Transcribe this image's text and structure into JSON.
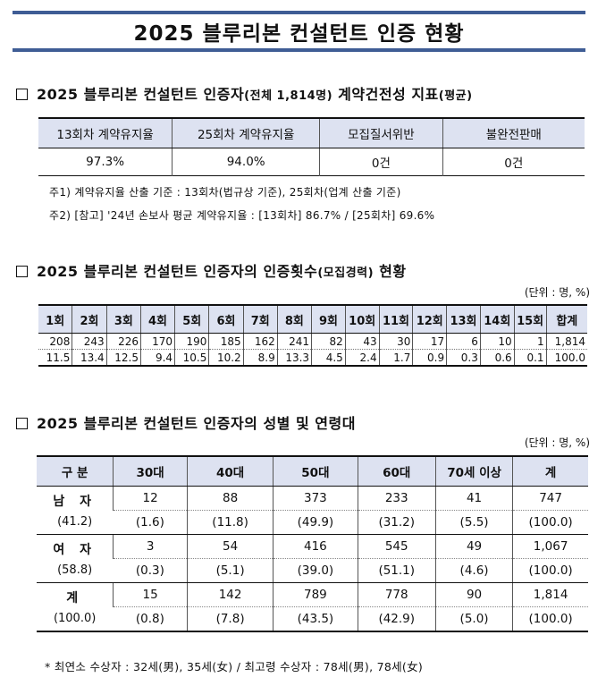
{
  "title": "2025 블루리본 컨설턴트 인증 현황",
  "section1": {
    "heading": "2025 블루리본 컨설턴트 인증자",
    "heading_small": "(전체 1,814명)",
    "heading_tail": " 계약건전성 지표",
    "heading_tail_small": "(평균)",
    "headers": [
      "13회차 계약유지율",
      "25회차 계약유지율",
      "모집질서위반",
      "불완전판매"
    ],
    "values": [
      "97.3%",
      "94.0%",
      "0건",
      "0건"
    ],
    "note1": "주1) 계약유지율 산출 기준 : 13회차(법규상 기준), 25회차(업계 산출 기준)",
    "note2": "주2) [참고] '24년 손보사 평균 계약유지율 : [13회차] 86.7% / [25회차] 69.6%"
  },
  "section2": {
    "heading": "2025 블루리본 컨설턴트 인증자의 인증횟수",
    "heading_small": "(모집경력)",
    "heading_tail": " 현황",
    "unit": "(단위 : 명, %)",
    "headers": [
      "1회",
      "2회",
      "3회",
      "4회",
      "5회",
      "6회",
      "7회",
      "8회",
      "9회",
      "10회",
      "11회",
      "12회",
      "13회",
      "14회",
      "15회",
      "합계"
    ],
    "counts": [
      "208",
      "243",
      "226",
      "170",
      "190",
      "185",
      "162",
      "241",
      "82",
      "43",
      "30",
      "17",
      "6",
      "10",
      "1",
      "1,814"
    ],
    "percents": [
      "11.5",
      "13.4",
      "12.5",
      "9.4",
      "10.5",
      "10.2",
      "8.9",
      "13.3",
      "4.5",
      "2.4",
      "1.7",
      "0.9",
      "0.3",
      "0.6",
      "0.1",
      "100.0"
    ]
  },
  "section3": {
    "heading": "2025 블루리본 컨설턴트 인증자의 성별 및 연령대",
    "unit": "(단위 : 명, %)",
    "headers": [
      "구 분",
      "30대",
      "40대",
      "50대",
      "60대",
      "70세 이상",
      "계"
    ],
    "rows": [
      {
        "label": "남 자",
        "sub": "(41.2)",
        "counts": [
          "12",
          "88",
          "373",
          "233",
          "41",
          "747"
        ],
        "percents": [
          "(1.6)",
          "(11.8)",
          "(49.9)",
          "(31.2)",
          "(5.5)",
          "(100.0)"
        ]
      },
      {
        "label": "여 자",
        "sub": "(58.8)",
        "counts": [
          "3",
          "54",
          "416",
          "545",
          "49",
          "1,067"
        ],
        "percents": [
          "(0.3)",
          "(5.1)",
          "(39.0)",
          "(51.1)",
          "(4.6)",
          "(100.0)"
        ]
      },
      {
        "label": "계",
        "sub": "(100.0)",
        "counts": [
          "15",
          "142",
          "789",
          "778",
          "90",
          "1,814"
        ],
        "percents": [
          "(0.8)",
          "(7.8)",
          "(43.5)",
          "(42.9)",
          "(5.0)",
          "(100.0)"
        ]
      }
    ],
    "footnote": "* 최연소 수상자 : 32세(男), 35세(女) / 최고령 수상자 : 78세(男), 78세(女)"
  }
}
